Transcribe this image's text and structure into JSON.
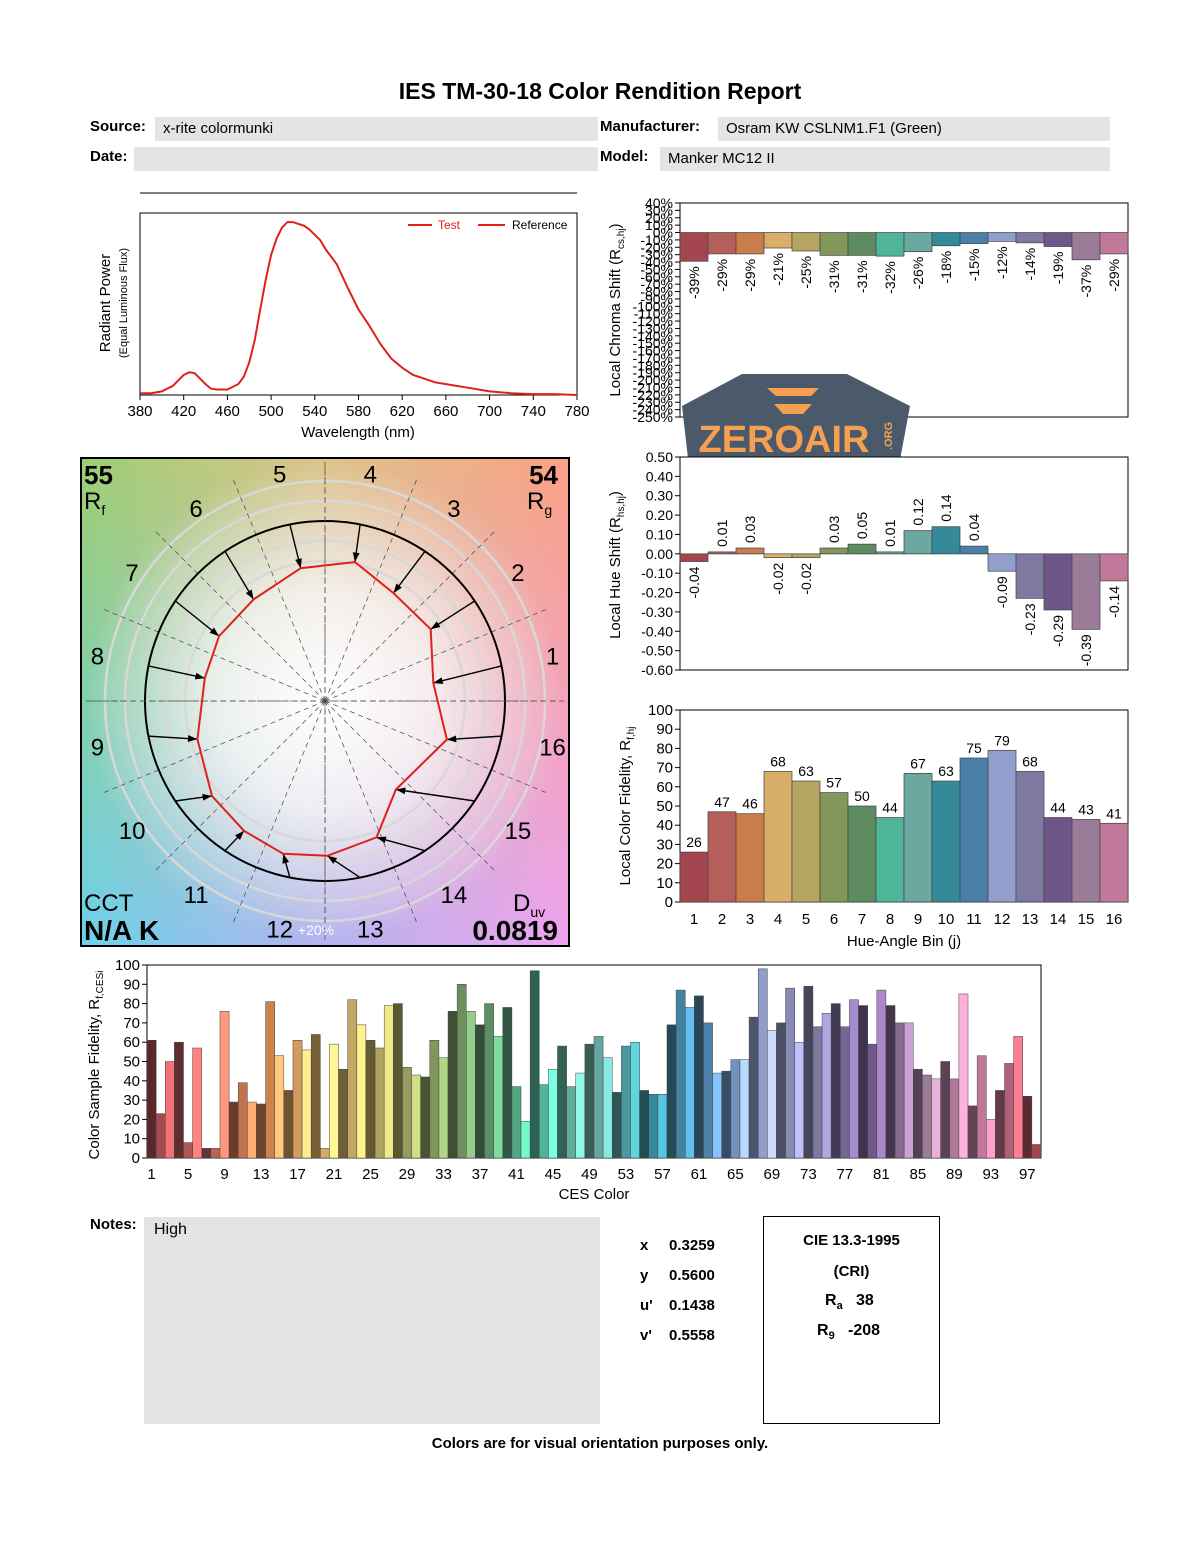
{
  "report": {
    "title": "IES TM-30-18 Color Rendition Report",
    "source_label": "Source:",
    "source_value": "x-rite colormunki",
    "manufacturer_label": "Manufacturer:",
    "manufacturer_value": "Osram KW CSLNM1.F1 (Green)",
    "date_label": "Date:",
    "date_value": "",
    "model_label": "Model:",
    "model_value": "Manker MC12 II",
    "notes_label": "Notes:",
    "notes_value": "High",
    "footer": "Colors are for visual orientation purposes only."
  },
  "chromaticity": {
    "x_label": "x",
    "x_value": "0.3259",
    "y_label": "y",
    "y_value": "0.5600",
    "u_label": "u'",
    "u_value": "0.1438",
    "v_label": "v'",
    "v_value": "0.5558"
  },
  "cri": {
    "title": "CIE 13.3-1995",
    "subtitle": "(CRI)",
    "ra_label": "R",
    "ra_sub": "a",
    "ra_value": "38",
    "r9_label": "R",
    "r9_sub": "9",
    "r9_value": "-208"
  },
  "watermark": {
    "text": "ZEROAIR",
    "suffix": ".ORG",
    "colors": {
      "shield": "#4a5a6a",
      "text": "#f5a051",
      "road": "#f4d05a"
    }
  },
  "hue_colors": [
    "#a3464f",
    "#b55f5a",
    "#c97c4c",
    "#d8ae68",
    "#b5a561",
    "#84975b",
    "#5c8c60",
    "#4eb599",
    "#6aa8a0",
    "#348a98",
    "#4a80a8",
    "#929fcc",
    "#7e79a0",
    "#6e5688",
    "#9a7b98",
    "#c07999"
  ],
  "chart_data": [
    {
      "id": "spd",
      "type": "line",
      "xlabel": "Wavelength (nm)",
      "ylabel": "Radiant Power",
      "ylabel_sub": "(Equal Luminous Flux)",
      "xlim": [
        380,
        780
      ],
      "ylim": [
        0,
        1
      ],
      "xticks": [
        380,
        420,
        460,
        500,
        540,
        580,
        620,
        660,
        700,
        740,
        780
      ],
      "legend_position": "top-right",
      "series": [
        {
          "name": "Test",
          "color": "#e0201b",
          "x": [
            380,
            390,
            400,
            410,
            415,
            420,
            425,
            430,
            435,
            440,
            445,
            450,
            460,
            470,
            475,
            480,
            485,
            490,
            495,
            500,
            505,
            510,
            515,
            520,
            525,
            530,
            535,
            540,
            545,
            550,
            560,
            570,
            580,
            590,
            600,
            610,
            620,
            630,
            640,
            650,
            660,
            680,
            700,
            720,
            740,
            760,
            780
          ],
          "y": [
            0.01,
            0.01,
            0.02,
            0.05,
            0.08,
            0.11,
            0.125,
            0.12,
            0.09,
            0.06,
            0.035,
            0.03,
            0.03,
            0.06,
            0.1,
            0.18,
            0.3,
            0.47,
            0.63,
            0.77,
            0.86,
            0.92,
            0.95,
            0.95,
            0.94,
            0.93,
            0.91,
            0.88,
            0.85,
            0.8,
            0.72,
            0.59,
            0.47,
            0.38,
            0.28,
            0.2,
            0.15,
            0.11,
            0.09,
            0.07,
            0.06,
            0.04,
            0.02,
            0.01,
            0.005,
            0.005,
            0.0
          ]
        },
        {
          "name": "Reference",
          "color": "#e0201b",
          "x": [],
          "y": []
        }
      ]
    },
    {
      "id": "chroma-shift",
      "type": "bar",
      "ylabel": "Local Chroma Shift (R",
      "ylabel_sub": "cs,hj",
      "ylabel_end": ")",
      "ylim": [
        -250,
        40
      ],
      "yticks": [
        40,
        30,
        20,
        10,
        0,
        -10,
        -20,
        -30,
        -40,
        -50,
        -60,
        -70,
        -80,
        -90,
        -100,
        -110,
        -120,
        -130,
        -140,
        -150,
        -160,
        -170,
        -180,
        -190,
        -200,
        -210,
        -220,
        -230,
        -240,
        -250
      ],
      "ytick_labels": [
        "40%",
        "30%",
        "20%",
        "10%",
        "0%",
        "-10%",
        "-20%",
        "-30%",
        "-40%",
        "-50%",
        "-60%",
        "-70%",
        "-80%",
        "-90%",
        "-100%",
        "-110%",
        "-120%",
        "-130%",
        "-140%",
        "-150%",
        "-160%",
        "-170%",
        "-180%",
        "-190%",
        "-200%",
        "-210%",
        "-220%",
        "-230%",
        "-240%",
        "-250%"
      ],
      "categories": [
        "1",
        "2",
        "3",
        "4",
        "5",
        "6",
        "7",
        "8",
        "9",
        "10",
        "11",
        "12",
        "13",
        "14",
        "15",
        "16"
      ],
      "values": [
        -39,
        -29,
        -29,
        -21,
        -25,
        -31,
        -31,
        -32,
        -26,
        -18,
        -15,
        -12,
        -14,
        -19,
        -37,
        -29
      ],
      "value_labels": [
        "-39%",
        "-29%",
        "-29%",
        "-21%",
        "-25%",
        "-31%",
        "-31%",
        "-32%",
        "-26%",
        "-18%",
        "-15%",
        "-12%",
        "-14%",
        "-19%",
        "-37%",
        "-29%"
      ]
    },
    {
      "id": "hue-shift",
      "type": "bar",
      "ylabel": "Local Hue Shift (R",
      "ylabel_sub": "hs,hj",
      "ylabel_end": ")",
      "ylim": [
        -0.6,
        0.5
      ],
      "yticks": [
        0.5,
        0.4,
        0.3,
        0.2,
        0.1,
        0.0,
        -0.1,
        -0.2,
        -0.3,
        -0.4,
        -0.5,
        -0.6
      ],
      "ytick_labels": [
        "0.50",
        "0.40",
        "0.30",
        "0.20",
        "0.10",
        "0.00",
        "-0.10",
        "-0.20",
        "-0.30",
        "-0.40",
        "-0.50",
        "-0.60"
      ],
      "categories": [
        "1",
        "2",
        "3",
        "4",
        "5",
        "6",
        "7",
        "8",
        "9",
        "10",
        "11",
        "12",
        "13",
        "14",
        "15",
        "16"
      ],
      "values": [
        -0.04,
        0.01,
        0.03,
        -0.02,
        -0.02,
        0.03,
        0.05,
        0.01,
        0.12,
        0.14,
        0.04,
        -0.09,
        -0.23,
        -0.29,
        -0.39,
        -0.14
      ],
      "value_labels": [
        "-0.04",
        "0.01",
        "0.03",
        "-0.02",
        "-0.02",
        "0.03",
        "0.05",
        "0.01",
        "0.12",
        "0.14",
        "0.04",
        "-0.09",
        "-0.23",
        "-0.29",
        "-0.39",
        "-0.14"
      ]
    },
    {
      "id": "local-fidelity",
      "type": "bar",
      "xlabel": "Hue-Angle Bin (j)",
      "ylabel": "Local Color Fidelity, R",
      "ylabel_sub": "f,hj",
      "ylim": [
        0,
        100
      ],
      "yticks": [
        0,
        10,
        20,
        30,
        40,
        50,
        60,
        70,
        80,
        90,
        100
      ],
      "categories": [
        "1",
        "2",
        "3",
        "4",
        "5",
        "6",
        "7",
        "8",
        "9",
        "10",
        "11",
        "12",
        "13",
        "14",
        "15",
        "16"
      ],
      "values": [
        26,
        47,
        46,
        68,
        63,
        57,
        50,
        44,
        67,
        63,
        75,
        79,
        68,
        44,
        43,
        41
      ]
    },
    {
      "id": "ces-fidelity",
      "type": "bar",
      "xlabel": "CES Color",
      "ylabel": "Color Sample Fidelity, R",
      "ylabel_sub": "f,CESi",
      "ylim": [
        0,
        100
      ],
      "yticks": [
        0,
        10,
        20,
        30,
        40,
        50,
        60,
        70,
        80,
        90,
        100
      ],
      "xtick_labels": [
        "1",
        "5",
        "9",
        "13",
        "17",
        "21",
        "25",
        "29",
        "33",
        "37",
        "41",
        "45",
        "49",
        "53",
        "57",
        "61",
        "65",
        "69",
        "73",
        "77",
        "81",
        "85",
        "89",
        "93",
        "97"
      ],
      "values": [
        61,
        23,
        50,
        60,
        8,
        57,
        5,
        5,
        76,
        29,
        39,
        29,
        28,
        81,
        53,
        35,
        61,
        56,
        64,
        5,
        59,
        46,
        82,
        69,
        61,
        57,
        79,
        80,
        47,
        43,
        42,
        61,
        52,
        76,
        90,
        76,
        69,
        80,
        63,
        78,
        37,
        19,
        97,
        38,
        46,
        58,
        37,
        44,
        59,
        63,
        52,
        34,
        58,
        60,
        35,
        33,
        33,
        69,
        87,
        78,
        84,
        70,
        44,
        45,
        51,
        51,
        73,
        98,
        66,
        70,
        88,
        60,
        89,
        68,
        75,
        80,
        68,
        82,
        79,
        59,
        87,
        79,
        70,
        70,
        46,
        43,
        41,
        50,
        41,
        85,
        27,
        53,
        20,
        35,
        49,
        63,
        32,
        7
      ]
    },
    {
      "id": "vector-graphic",
      "type": "scatter",
      "values_rf": "55",
      "rf_label": "R",
      "rf_sub": "f",
      "values_rg": "54",
      "rg_label": "R",
      "rg_sub": "g",
      "cct_label": "CCT",
      "cct_value": "N/A K",
      "duv_label": "D",
      "duv_sub": "uv",
      "duv_value": "0.0819",
      "ring_label": "+20%",
      "bin_labels": [
        "1",
        "2",
        "3",
        "4",
        "5",
        "6",
        "7",
        "8",
        "9",
        "10",
        "11",
        "12",
        "13",
        "14",
        "15",
        "16"
      ],
      "chroma_ratio": [
        0.61,
        0.71,
        0.71,
        0.79,
        0.75,
        0.69,
        0.69,
        0.68,
        0.74,
        0.82,
        0.85,
        0.88,
        0.86,
        0.81,
        0.63,
        0.71
      ],
      "hue_shift": [
        -0.04,
        0.01,
        0.03,
        -0.02,
        -0.02,
        0.03,
        0.05,
        0.01,
        0.12,
        0.14,
        0.04,
        -0.09,
        -0.23,
        -0.29,
        -0.39,
        -0.14
      ]
    }
  ]
}
